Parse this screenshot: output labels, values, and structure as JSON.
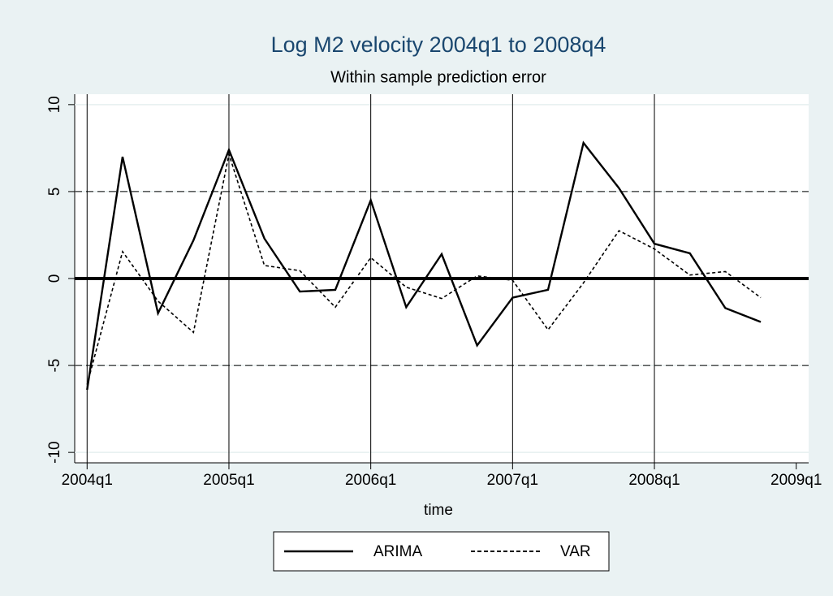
{
  "chart_data": {
    "type": "line",
    "title": "Log M2 velocity  2004q1 to 2008q4",
    "subtitle": "Within sample prediction error",
    "x_label": "time",
    "x": [
      176,
      177,
      178,
      179,
      180,
      181,
      182,
      183,
      184,
      185,
      186,
      187,
      188,
      189,
      190,
      191,
      192,
      193,
      194,
      195
    ],
    "series": [
      {
        "name": "ARIMA",
        "color": "#000000",
        "style": "solid",
        "values": [
          -6.4,
          7.0,
          -2.0,
          2.2,
          7.4,
          2.3,
          -0.75,
          -0.65,
          4.5,
          -1.65,
          1.4,
          -3.85,
          -1.1,
          -0.65,
          7.8,
          5.2,
          2.0,
          1.45,
          -1.7,
          -2.5
        ]
      },
      {
        "name": "VAR",
        "color": "#000000",
        "style": "dashed",
        "values": [
          -6.1,
          1.55,
          -1.3,
          -3.1,
          7.15,
          0.75,
          0.45,
          -1.65,
          1.2,
          -0.5,
          -1.15,
          0.15,
          -0.1,
          -2.95,
          -0.25,
          2.75,
          1.7,
          0.2,
          0.4,
          -1.1
        ]
      }
    ],
    "xlim": [
      175.65,
      196.35
    ],
    "ylim": [
      -10.6,
      10.6
    ],
    "xticks": [
      {
        "value": 176,
        "label": "2004q1"
      },
      {
        "value": 180,
        "label": "2005q1"
      },
      {
        "value": 184,
        "label": "2006q1"
      },
      {
        "value": 188,
        "label": "2007q1"
      },
      {
        "value": 192,
        "label": "2008q1"
      },
      {
        "value": 196,
        "label": "2009q1"
      }
    ],
    "yticks": [
      -10,
      -5,
      0,
      5,
      10
    ],
    "ylines": [
      {
        "value": -5,
        "style": "dashed"
      },
      {
        "value": 0,
        "style": "thick"
      },
      {
        "value": 5,
        "style": "dashed"
      }
    ],
    "xlines": [
      176,
      180,
      184,
      188,
      192
    ],
    "legend": "bottom"
  }
}
